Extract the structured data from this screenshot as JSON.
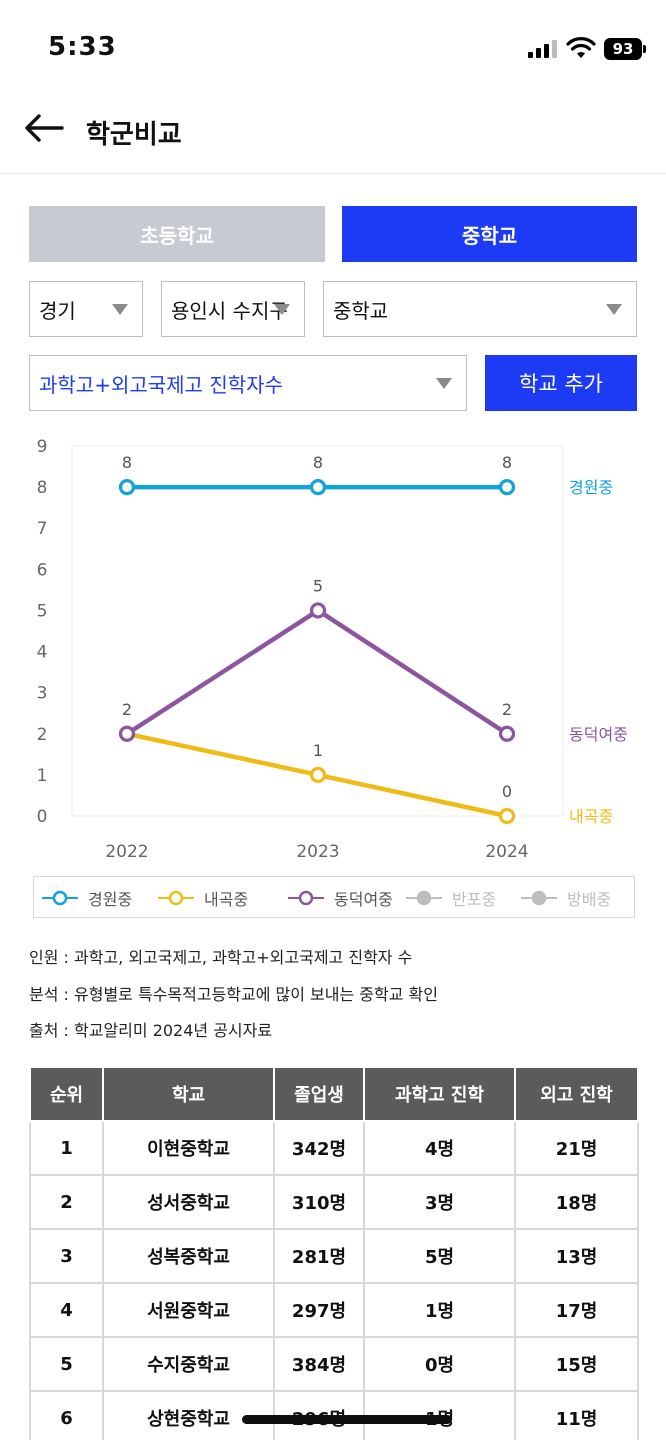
{
  "status_bar": {
    "time": "5:33",
    "battery": "93"
  },
  "header": {
    "title": "학군비교"
  },
  "school_type_tabs": {
    "elementary": "초등학교",
    "middle": "중학교"
  },
  "filters": {
    "region": "경기",
    "city": "용인시 수지구",
    "level": "중학교",
    "metric": "과학고+외고국제고 진학자수",
    "add_button": "학교 추가"
  },
  "colors": {
    "primary": "#1d3bf5",
    "inactive_tab": "#c7cad1",
    "series_gyeongwon": "#12a3d9",
    "series_naegok": "#f0bb14",
    "series_dongdeok": "#8b55a0",
    "series_disabled": "#bdbdbd"
  },
  "chart_data": {
    "type": "line",
    "x": [
      "2022",
      "2023",
      "2024"
    ],
    "ylim": [
      0,
      9
    ],
    "y_ticks": [
      "0",
      "1",
      "2",
      "3",
      "4",
      "5",
      "6",
      "7",
      "8",
      "9"
    ],
    "series": [
      {
        "name": "경원중",
        "values": [
          8,
          8,
          8
        ],
        "color": "#12a3d9"
      },
      {
        "name": "내곡중",
        "values": [
          2,
          1,
          0
        ],
        "color": "#f0bb14"
      },
      {
        "name": "동덕여중",
        "values": [
          2,
          5,
          2
        ],
        "color": "#8b55a0"
      }
    ],
    "data_labels": [
      {
        "x": "2022",
        "value": "8"
      },
      {
        "x": "2023",
        "value": "8"
      },
      {
        "x": "2024",
        "value": "8"
      },
      {
        "x": "2022",
        "value": "2"
      },
      {
        "x": "2023",
        "value": "5"
      },
      {
        "x": "2024",
        "value": "2"
      },
      {
        "x": "2023",
        "value": "1"
      },
      {
        "x": "2024",
        "value": "0"
      }
    ],
    "end_labels": [
      "경원중",
      "동덕여중",
      "내곡중"
    ],
    "grid": false
  },
  "legend": [
    {
      "name": "경원중",
      "color": "#12a3d9",
      "enabled": true
    },
    {
      "name": "내곡중",
      "color": "#f0bb14",
      "enabled": true
    },
    {
      "name": "동덕여중",
      "color": "#8b55a0",
      "enabled": true
    },
    {
      "name": "반포중",
      "color": "#bdbdbd",
      "enabled": false
    },
    {
      "name": "방배중",
      "color": "#bdbdbd",
      "enabled": false
    }
  ],
  "notes": [
    "인원 : 과학고, 외고국제고, 과학고+외고국제고 진학자 수",
    "분석 : 유형별로 특수목적고등학교에 많이 보내는 중학교 확인",
    "출처 : 학교알리미 2024년 공시자료"
  ],
  "table": {
    "headers": [
      "순위",
      "학교",
      "졸업생",
      "과학고 진학",
      "외고 진학"
    ],
    "rows": [
      [
        "1",
        "이현중학교",
        "342명",
        "4명",
        "21명"
      ],
      [
        "2",
        "성서중학교",
        "310명",
        "3명",
        "18명"
      ],
      [
        "3",
        "성복중학교",
        "281명",
        "5명",
        "13명"
      ],
      [
        "4",
        "서원중학교",
        "297명",
        "1명",
        "17명"
      ],
      [
        "5",
        "수지중학교",
        "384명",
        "0명",
        "15명"
      ],
      [
        "6",
        "상현중학교",
        "296명",
        "1명",
        "11명"
      ]
    ]
  }
}
